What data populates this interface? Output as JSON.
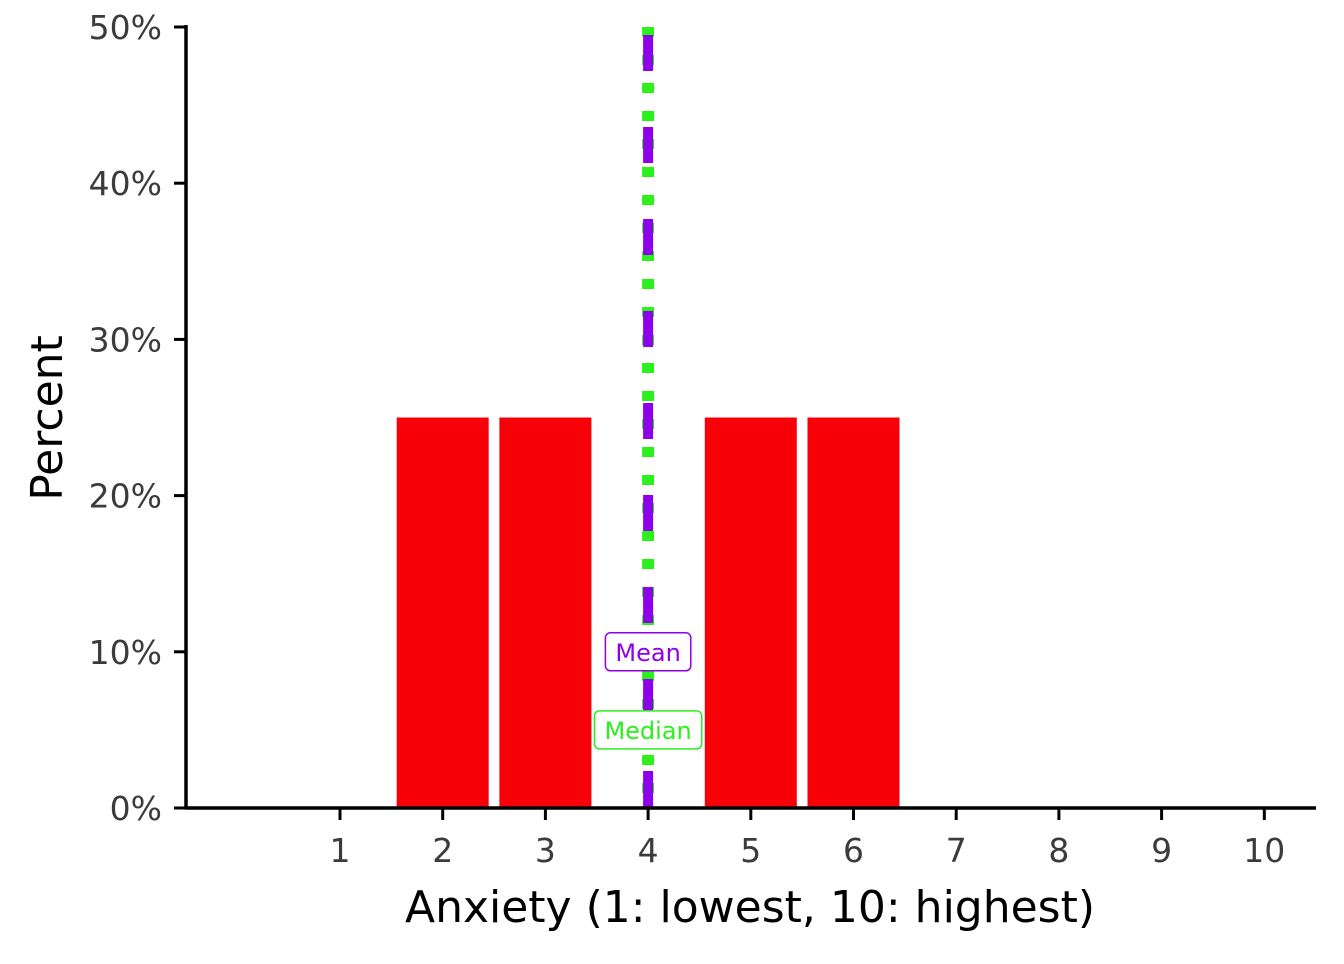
{
  "chart_data": {
    "type": "bar",
    "title": "",
    "xlabel": "Anxiety (1: lowest, 10: highest)",
    "ylabel": "Percent",
    "x": [
      1,
      2,
      3,
      4,
      5,
      6,
      7,
      8,
      9,
      10
    ],
    "xticks": [
      "1",
      "2",
      "3",
      "4",
      "5",
      "6",
      "7",
      "8",
      "9",
      "10"
    ],
    "values": [
      0,
      25,
      25,
      0,
      25,
      25,
      0,
      0,
      0,
      0
    ],
    "ylim": [
      0,
      50
    ],
    "yticks": [
      0,
      10,
      20,
      30,
      40,
      50
    ],
    "ytick_labels": [
      "0%",
      "10%",
      "20%",
      "30%",
      "40%",
      "50%"
    ],
    "grid": false,
    "bar_color": "#f80008",
    "reference_lines": [
      {
        "name": "Mean",
        "x": 4,
        "color": "#8f00ea",
        "label_y": 10
      },
      {
        "name": "Median",
        "x": 4,
        "color": "#2cf01c",
        "label_y": 5
      }
    ]
  },
  "colors": {
    "axis": "#000000",
    "tick_label": "#3b3b3b",
    "axis_title": "#000000"
  }
}
